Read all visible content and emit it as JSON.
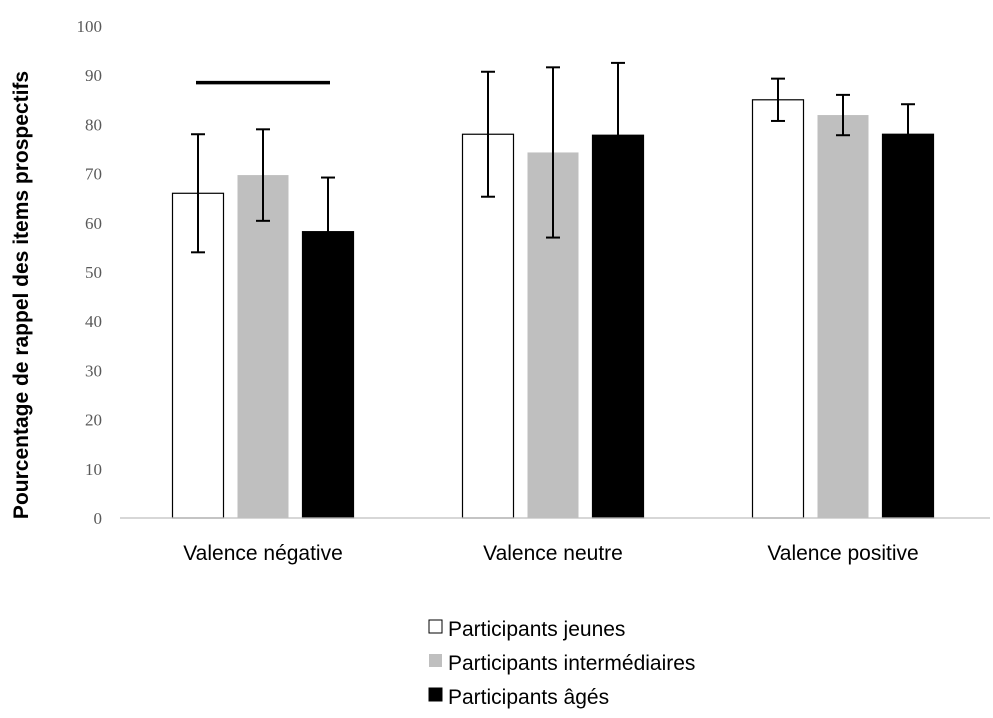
{
  "chart_data": {
    "type": "bar",
    "ylabel": "Pourcentage de rappel des items prospectifs",
    "xlabel": "",
    "ylim": [
      0,
      100
    ],
    "yticks": [
      0,
      10,
      20,
      30,
      40,
      50,
      60,
      70,
      80,
      90,
      100
    ],
    "categories": [
      "Valence négative",
      "Valence neutre",
      "Valence positive"
    ],
    "series": [
      {
        "name": "Participants jeunes",
        "color": "#ffffff",
        "stroke": "#000000",
        "values": [
          66,
          78,
          85
        ],
        "error": [
          12,
          12.7,
          4.3
        ]
      },
      {
        "name": "Participants intermédiaires",
        "color": "#bfbfbf",
        "stroke": "none",
        "values": [
          69.7,
          74.3,
          81.9
        ],
        "error": [
          9.3,
          17.3,
          4.1
        ]
      },
      {
        "name": "Participants âgés",
        "color": "#000000",
        "stroke": "#000000",
        "values": [
          58.2,
          77.8,
          78
        ],
        "error": [
          11,
          14.7,
          6.1
        ]
      }
    ],
    "annotations": [
      {
        "type": "significance-line",
        "category": "Valence négative",
        "value": 88.5
      }
    ],
    "legend_position": "bottom-center",
    "grid": false
  }
}
